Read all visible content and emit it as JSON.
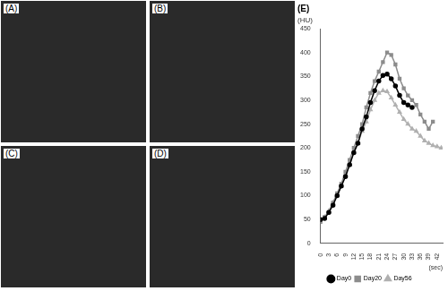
{
  "panels": [
    "(A)",
    "(B)",
    "(C)",
    "(D)"
  ],
  "chart_data": {
    "type": "line",
    "title": "(E)",
    "x_label": "(sec)",
    "y_label": "(HU)",
    "x": [
      0,
      1.5,
      3,
      4.5,
      6,
      7.5,
      9,
      10.5,
      12,
      13.5,
      15,
      16.5,
      18,
      19.5,
      21,
      22.5,
      24,
      25.5,
      27,
      28.5,
      30,
      31.5,
      33,
      34.5,
      36,
      37.5,
      39,
      40.5,
      42,
      43.5
    ],
    "series": [
      {
        "name": "Day0",
        "color": "#000000",
        "marker": "circle",
        "line_style": "solid",
        "values": [
          50,
          52,
          65,
          80,
          100,
          120,
          140,
          165,
          190,
          210,
          240,
          265,
          295,
          320,
          340,
          352,
          355,
          345,
          330,
          310,
          295,
          290,
          285,
          null,
          null,
          null,
          null,
          null,
          null,
          null
        ]
      },
      {
        "name": "Day20",
        "color": "#8c8c8c",
        "marker": "square",
        "line_style": "solid",
        "values": [
          45,
          55,
          65,
          85,
          105,
          125,
          150,
          175,
          200,
          225,
          250,
          285,
          315,
          340,
          360,
          380,
          400,
          395,
          375,
          345,
          325,
          310,
          300,
          290,
          270,
          255,
          240,
          255,
          null,
          null
        ]
      },
      {
        "name": "Day56",
        "color": "#b0b0b0",
        "marker": "triangle",
        "line_style": "solid",
        "values": [
          50,
          55,
          68,
          85,
          100,
          120,
          145,
          165,
          190,
          210,
          235,
          255,
          280,
          300,
          315,
          320,
          318,
          305,
          290,
          275,
          260,
          250,
          240,
          235,
          225,
          215,
          210,
          205,
          203,
          200
        ]
      }
    ],
    "xlim": [
      0,
      44
    ],
    "xticks": [
      0,
      3,
      6,
      9,
      12,
      15,
      18,
      21,
      24,
      27,
      30,
      33,
      36,
      39,
      42
    ],
    "ylim": [
      0,
      450
    ],
    "yticks": [
      0,
      50,
      100,
      150,
      200,
      250,
      300,
      350,
      400,
      450
    ],
    "grid": false,
    "legend": "bottom"
  }
}
